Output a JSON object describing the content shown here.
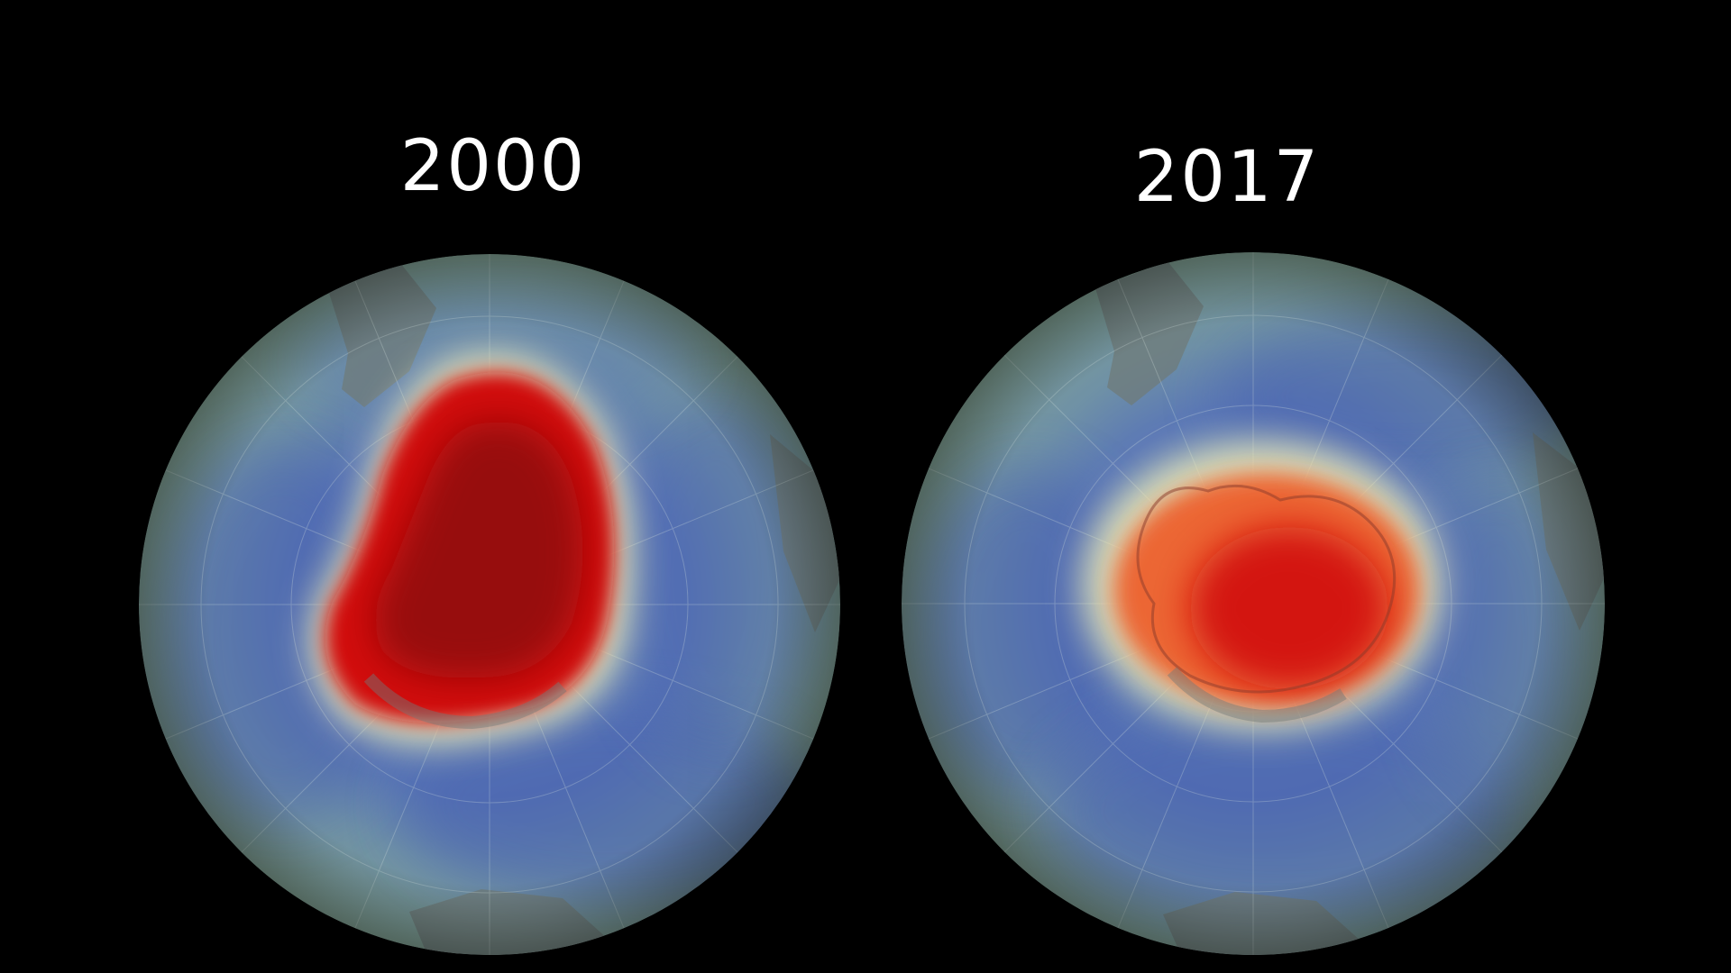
{
  "panels": [
    {
      "year": "2000",
      "ozone_hole": "large",
      "icon": "southern-hemisphere-globe"
    },
    {
      "year": "2017",
      "ozone_hole": "smaller",
      "icon": "southern-hemisphere-globe"
    }
  ],
  "colors": {
    "background": "#000000",
    "ocean_teal": "#7f9f95",
    "low_ozone_blue": "#4f67b0",
    "hole_red": "#d10f0f",
    "hole_dark_red": "#8e0a0a",
    "hole_orange": "#ee5a26",
    "edge_yellow": "#f3f0b8",
    "land_gray": "#6f7b79"
  }
}
